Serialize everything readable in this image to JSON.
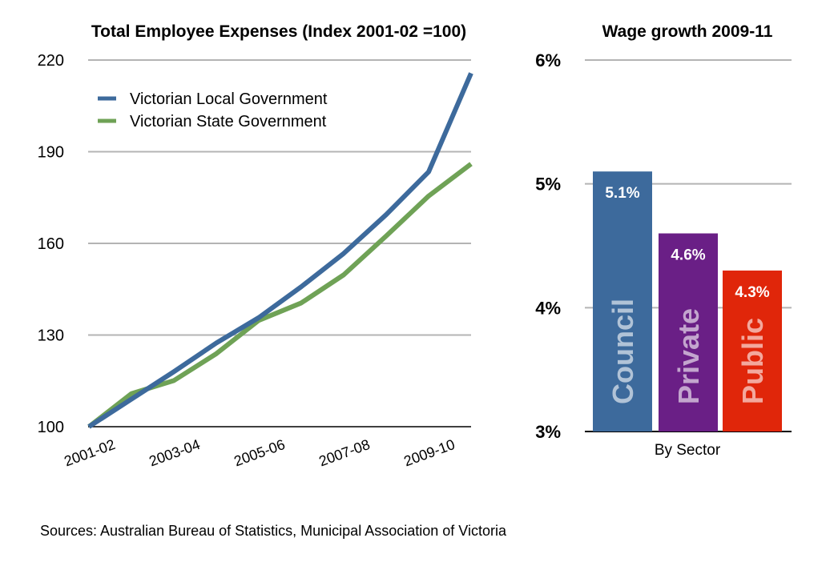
{
  "source_note": "Sources: Australian Bureau of Statistics, Municipal Association of Victoria",
  "chart_data": [
    {
      "type": "line",
      "title": "Total Employee Expenses (Index 2001-02 =100)",
      "xlabel": "",
      "ylabel": "",
      "x": [
        "2001-02",
        "2002-03",
        "2003-04",
        "2004-05",
        "2005-06",
        "2006-07",
        "2007-08",
        "2008-09",
        "2009-10",
        "2010-11"
      ],
      "x_tick_labels": [
        "2001-02",
        "2003-04",
        "2005-06",
        "2007-08",
        "2009-10"
      ],
      "y_tick_labels": [
        "100",
        "130",
        "160",
        "190",
        "220"
      ],
      "ylim": [
        100,
        220
      ],
      "grid": true,
      "legend": "top-left",
      "series": [
        {
          "name": "Victorian Local Government",
          "color": "#3d6a9c",
          "values": [
            100,
            109,
            118,
            127.4,
            135.7,
            145.8,
            156.7,
            169.4,
            183.4,
            215.7
          ]
        },
        {
          "name": "Victorian State Government",
          "color": "#6fa256",
          "values": [
            100,
            110.8,
            115.1,
            123.9,
            134.8,
            140.5,
            149.7,
            162.4,
            175.5,
            186
          ]
        }
      ]
    },
    {
      "type": "bar",
      "title": "Wage growth 2009-11",
      "xlabel": "By Sector",
      "ylabel": "",
      "categories": [
        "Council",
        "Private",
        "Public"
      ],
      "values": [
        5.1,
        4.6,
        4.3
      ],
      "data_labels": [
        "5.1%",
        "4.6%",
        "4.3%"
      ],
      "colors": [
        "#3d6a9c",
        "#6a1f86",
        "#e0260a"
      ],
      "y_tick_labels": [
        "3%",
        "4%",
        "5%",
        "6%"
      ],
      "ylim": [
        3,
        6
      ],
      "grid": true
    }
  ]
}
